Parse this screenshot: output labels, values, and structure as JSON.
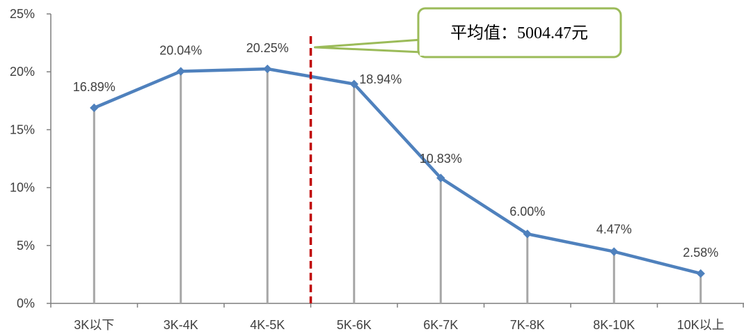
{
  "chart_data": {
    "type": "line",
    "categories": [
      "3K以下",
      "3K-4K",
      "4K-5K",
      "5K-6K",
      "6K-7K",
      "7K-8K",
      "8K-10K",
      "10K以上"
    ],
    "series": [
      {
        "values": [
          16.89,
          20.04,
          20.25,
          18.94,
          10.83,
          6.0,
          4.47,
          2.58
        ]
      }
    ],
    "data_labels": [
      "16.89%",
      "20.04%",
      "20.25%",
      "18.94%",
      "10.83%",
      "6.00%",
      "4.47%",
      "2.58%"
    ],
    "y_ticks": [
      "0%",
      "5%",
      "10%",
      "15%",
      "20%",
      "25%"
    ],
    "ylim": [
      0,
      25
    ],
    "ytick_step": 5,
    "drop_lines": true,
    "grid": false,
    "reference_line": {
      "position_between": [
        "4K-5K",
        "5K-6K"
      ],
      "style": "dashed",
      "color": "#c00000"
    },
    "annotation": "平均值：5004.47元",
    "colors": {
      "line": "#4f81bd",
      "drop": "#a6a6a6",
      "axis": "#7f7f7f",
      "callout_border": "#9bbb59",
      "reference": "#c00000"
    }
  }
}
